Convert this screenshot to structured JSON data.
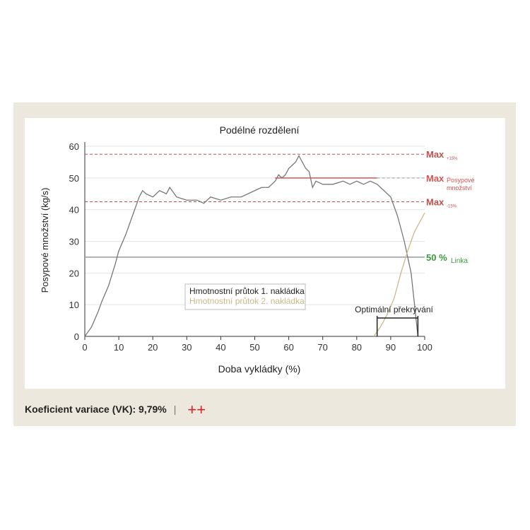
{
  "chart_data": {
    "type": "line",
    "title": "Podélné rozdělení",
    "xlabel": "Doba vykládky (%)",
    "ylabel": "Posypové množství (kg/s)",
    "xlim": [
      0,
      100
    ],
    "ylim": [
      0,
      60
    ],
    "xticks": [
      0,
      10,
      20,
      30,
      40,
      50,
      60,
      70,
      80,
      90,
      100
    ],
    "yticks": [
      0,
      10,
      20,
      30,
      40,
      50,
      60
    ],
    "series": [
      {
        "name": "Hmotnostní průtok 1. nakládka",
        "color": "#777777",
        "points": [
          [
            0,
            0
          ],
          [
            2,
            3
          ],
          [
            4,
            8
          ],
          [
            5,
            11
          ],
          [
            7,
            16
          ],
          [
            9,
            23
          ],
          [
            10,
            27
          ],
          [
            12,
            32
          ],
          [
            14,
            38
          ],
          [
            16,
            44
          ],
          [
            17,
            46
          ],
          [
            18,
            45
          ],
          [
            20,
            44
          ],
          [
            22,
            46
          ],
          [
            24,
            45
          ],
          [
            25,
            47
          ],
          [
            27,
            44
          ],
          [
            30,
            43
          ],
          [
            33,
            43
          ],
          [
            35,
            42
          ],
          [
            37,
            44
          ],
          [
            40,
            43
          ],
          [
            43,
            44
          ],
          [
            46,
            44
          ],
          [
            48,
            45
          ],
          [
            50,
            46
          ],
          [
            52,
            47
          ],
          [
            54,
            47
          ],
          [
            56,
            49
          ],
          [
            57,
            51
          ],
          [
            58,
            50
          ],
          [
            59,
            51
          ],
          [
            60,
            53
          ],
          [
            62,
            55
          ],
          [
            63,
            57
          ],
          [
            65,
            53
          ],
          [
            66,
            52
          ],
          [
            67,
            47
          ],
          [
            68,
            49
          ],
          [
            70,
            48
          ],
          [
            73,
            48
          ],
          [
            76,
            49
          ],
          [
            78,
            48
          ],
          [
            80,
            49
          ],
          [
            82,
            48
          ],
          [
            84,
            49
          ],
          [
            86,
            48
          ],
          [
            88,
            46
          ],
          [
            90,
            44
          ],
          [
            92,
            38
          ],
          [
            94,
            30
          ],
          [
            96,
            20
          ],
          [
            97,
            10
          ],
          [
            98,
            0
          ]
        ]
      },
      {
        "name": "Hmotnostní průtok 2. nakládka",
        "color": "#c8b98a",
        "points": [
          [
            85,
            0
          ],
          [
            87,
            3
          ],
          [
            89,
            7
          ],
          [
            91,
            12
          ],
          [
            93,
            20
          ],
          [
            95,
            27
          ],
          [
            97,
            33
          ],
          [
            99,
            37
          ],
          [
            100,
            39
          ]
        ]
      }
    ],
    "reference_lines": [
      {
        "y": 57.5,
        "label": "Max",
        "sub": "+15%",
        "style": "dashed",
        "color": "#c0504d"
      },
      {
        "y": 50,
        "x_from": 56,
        "x_to": 86,
        "label": "Max",
        "sub": "Posypové množství",
        "style": "solid",
        "color": "#d9534f"
      },
      {
        "y": 42.5,
        "label": "Max",
        "sub": "-15%",
        "style": "dashed",
        "color": "#c0504d"
      },
      {
        "y": 25,
        "label": "50 %",
        "sub": "Linka",
        "style": "solid",
        "color": "#999999",
        "label_color": "#3a9a3a"
      }
    ],
    "annotation": {
      "label": "Optimální překrývání",
      "x_from": 86,
      "x_to": 98
    }
  },
  "footer": {
    "text": "Koeficient variace (VK): 9,79%",
    "separator": "|",
    "rating": "++"
  }
}
